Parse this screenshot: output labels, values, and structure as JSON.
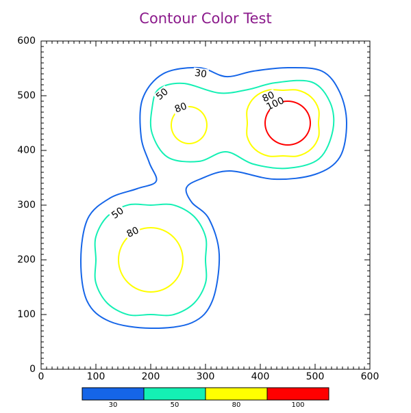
{
  "chart_data": {
    "type": "contour",
    "title": "Contour Color Test",
    "levels": [
      30,
      50,
      80,
      100
    ],
    "colors": [
      "#1565e8",
      "#14f0b4",
      "#ffff00",
      "#ff0000"
    ],
    "xlim": [
      0,
      600
    ],
    "ylim": [
      0,
      600
    ],
    "xticks": [
      0,
      100,
      200,
      300,
      400,
      500,
      600
    ],
    "yticks": [
      0,
      100,
      200,
      300,
      400,
      500,
      600
    ]
  }
}
